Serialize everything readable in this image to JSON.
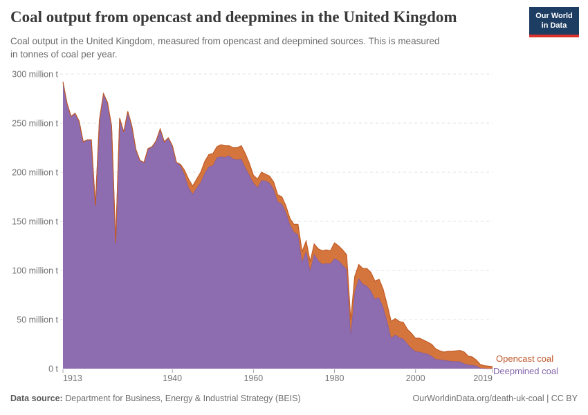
{
  "header": {
    "title": "Coal output from opencast and deepmines in the United Kingdom",
    "subtitle": "Coal output in the United Kingdom, measured from opencast and deepmined sources. This is measured in tonnes of coal per year.",
    "logo": {
      "line1": "Our World",
      "line2": "in Data",
      "bg_color": "#1d3d63",
      "accent_color": "#db312b"
    }
  },
  "chart_data": {
    "type": "area",
    "stacked": true,
    "title": "Coal output from opencast and deepmines in the United Kingdom",
    "xlabel": "",
    "ylabel": "tonnes of coal per year",
    "x": [
      1913,
      1914,
      1915,
      1916,
      1917,
      1918,
      1919,
      1920,
      1921,
      1922,
      1923,
      1924,
      1925,
      1926,
      1927,
      1928,
      1929,
      1930,
      1931,
      1932,
      1933,
      1934,
      1935,
      1936,
      1937,
      1938,
      1939,
      1940,
      1941,
      1942,
      1943,
      1944,
      1945,
      1946,
      1947,
      1948,
      1949,
      1950,
      1951,
      1952,
      1953,
      1954,
      1955,
      1956,
      1957,
      1958,
      1959,
      1960,
      1961,
      1962,
      1963,
      1964,
      1965,
      1966,
      1967,
      1968,
      1969,
      1970,
      1971,
      1972,
      1973,
      1974,
      1975,
      1976,
      1977,
      1978,
      1979,
      1980,
      1981,
      1982,
      1983,
      1984,
      1985,
      1986,
      1987,
      1988,
      1989,
      1990,
      1991,
      1992,
      1993,
      1994,
      1995,
      1996,
      1997,
      1998,
      1999,
      2000,
      2001,
      2002,
      2003,
      2004,
      2005,
      2006,
      2007,
      2008,
      2009,
      2010,
      2011,
      2012,
      2013,
      2014,
      2015,
      2016,
      2017,
      2018,
      2019
    ],
    "series": [
      {
        "name": "Deepmined coal",
        "unit": "million t",
        "color": "#8d6cb0",
        "stroke": "#7b58a4",
        "label_color": "#8466ac",
        "values": [
          292,
          270,
          257,
          260,
          252,
          231,
          233,
          233,
          166,
          253,
          280,
          271,
          247,
          128,
          255,
          241,
          262,
          247,
          223,
          212,
          210,
          224,
          226,
          232,
          244,
          231,
          235,
          227,
          210,
          206.7,
          197.5,
          184.3,
          177.9,
          184.1,
          189.8,
          199.1,
          205.6,
          206.8,
          215,
          215.9,
          215.3,
          216.9,
          213.6,
          212.8,
          213.4,
          204.7,
          197,
          189.3,
          184.3,
          191.8,
          191.2,
          189.1,
          182.6,
          170,
          167.9,
          159.3,
          146.7,
          139.1,
          136.4,
          108.6,
          119.9,
          99.8,
          116.6,
          110.1,
          106.4,
          107.3,
          107,
          112.2,
          110.1,
          105.7,
          101.3,
          35.2,
          78.4,
          91.9,
          86.2,
          84.1,
          79.3,
          70.9,
          72.4,
          62.8,
          48,
          31.2,
          34.6,
          31.7,
          30.3,
          25.2,
          20.7,
          17.6,
          17.1,
          15.9,
          15,
          12.9,
          9.6,
          9.4,
          8.6,
          8.1,
          7.5,
          7.4,
          7.2,
          5.2,
          4.1,
          3.6,
          2.9,
          0.7,
          0.3,
          0.2,
          0.1
        ]
      },
      {
        "name": "Opencast coal",
        "unit": "million t",
        "color": "#d4753e",
        "stroke": "#c25b24",
        "label_color": "#c0562a",
        "values": [
          0,
          0,
          0,
          0,
          0,
          0,
          0,
          0,
          0,
          0,
          0,
          0,
          0,
          0,
          0,
          0,
          0,
          0,
          0,
          0,
          0,
          0,
          0,
          0,
          0,
          0,
          0,
          0,
          0,
          1.3,
          4.5,
          8.7,
          8.1,
          8.9,
          10.2,
          11.9,
          12.4,
          12.2,
          11,
          12.1,
          11.7,
          10.1,
          11.4,
          12.2,
          13.6,
          14.3,
          12,
          7.7,
          8.7,
          8.2,
          6.8,
          6.9,
          7.4,
          7,
          7.1,
          6.7,
          6.3,
          7.9,
          10.6,
          10.4,
          10.1,
          9.2,
          10.4,
          11.9,
          13.6,
          13.7,
          13,
          15.8,
          14.9,
          15.3,
          14.7,
          14.2,
          15.6,
          14.1,
          15.8,
          17.9,
          18.7,
          18.1,
          18.6,
          18.2,
          17,
          16.8,
          16.4,
          16.3,
          16.7,
          14.8,
          15.3,
          13.4,
          13.9,
          13.1,
          12,
          11.9,
          10.5,
          8.8,
          8.3,
          9.6,
          10.2,
          10.8,
          11.3,
          11.8,
          8.7,
          8.3,
          5.8,
          3.5,
          2.7,
          2.4,
          2
        ]
      }
    ],
    "ylim": [
      0,
      300
    ],
    "yticks": [
      0,
      50,
      100,
      150,
      200,
      250,
      300
    ],
    "ytick_labels": [
      "0 t",
      "50 million t",
      "100 million t",
      "150 million t",
      "200 million t",
      "250 million t",
      "300 million t"
    ],
    "xticks": [
      1913,
      1940,
      1960,
      1980,
      2000,
      2019
    ],
    "grid": true,
    "legend_position": "right-of-plot-end",
    "colors": {
      "grid": "#e2e2e2",
      "axis_text": "#737373",
      "tick": "#a3a3a3"
    }
  },
  "footer": {
    "source_label": "Data source:",
    "source_value": "Department for Business, Energy & Industrial Strategy (BEIS)",
    "credit": "OurWorldinData.org/death-uk-coal | CC BY"
  }
}
